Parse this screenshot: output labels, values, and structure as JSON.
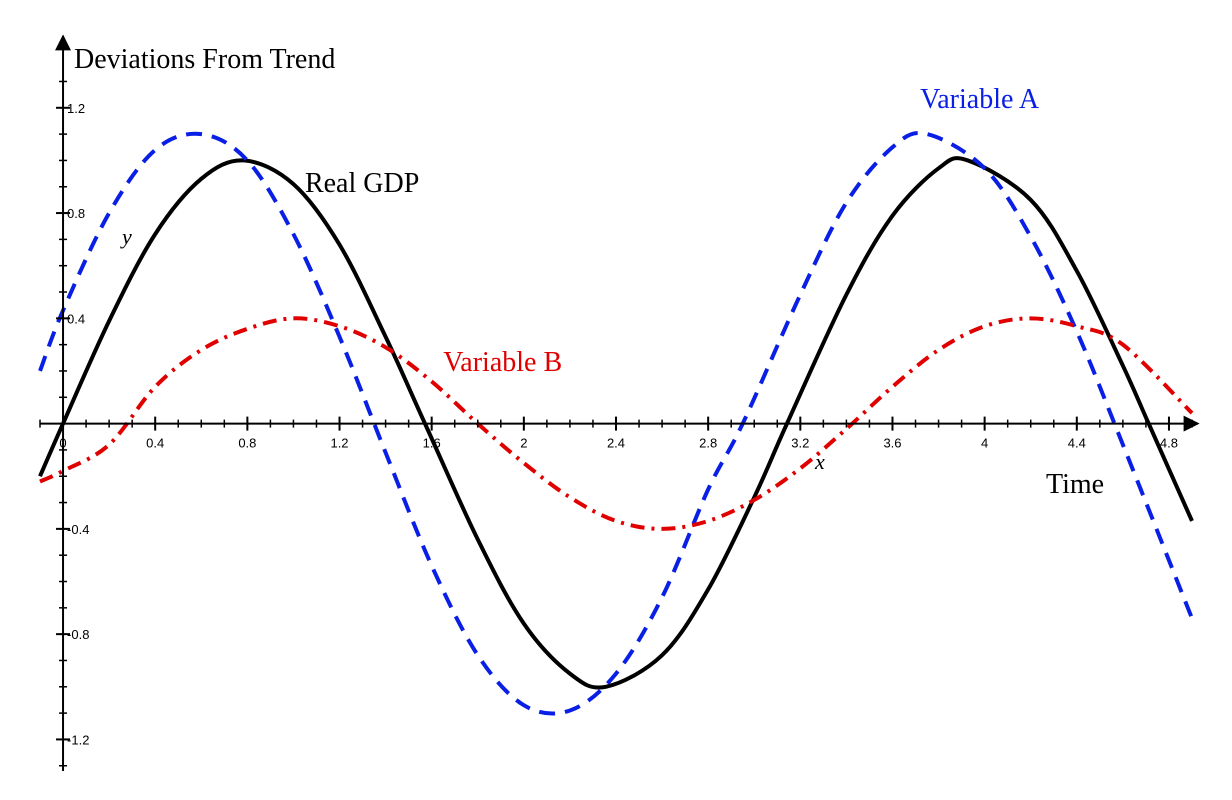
{
  "chart_data": {
    "type": "line",
    "ylabel": "Deviations From Trend",
    "xlabel": "Time",
    "x_axis_var": "x",
    "y_axis_var": "y",
    "xlim": [
      -0.1,
      4.9
    ],
    "ylim": [
      -1.32,
      1.45
    ],
    "x_ticks": [
      0,
      0.4,
      0.8,
      1.2,
      1.6,
      2,
      2.4,
      2.8,
      3.2,
      3.6,
      4,
      4.4,
      4.8
    ],
    "x_tick_labels": [
      "0",
      "0.4",
      "0.8",
      "1.2",
      "1.6",
      "2",
      "2.4",
      "2.8",
      "3.2",
      "3.6",
      "4",
      "4.4",
      "4.8"
    ],
    "y_ticks": [
      1.2,
      0.8,
      0.4,
      -0.4,
      -0.8,
      -1.2
    ],
    "y_tick_labels": [
      "1.2",
      "0.8",
      "0.4",
      "-0.4",
      "-0.8",
      "-1.2"
    ],
    "grid": false,
    "series": [
      {
        "name": "Real GDP",
        "style": "solid",
        "color": "#000000",
        "x": [
          -0.1,
          0,
          0.2,
          0.4,
          0.6,
          0.785,
          1.0,
          1.2,
          1.4,
          1.571,
          1.8,
          2.0,
          2.2,
          2.356,
          2.6,
          2.8,
          3.0,
          3.142,
          3.4,
          3.6,
          3.8,
          3.927,
          4.2,
          4.4,
          4.6,
          4.712,
          4.9
        ],
        "y": [
          -0.2,
          0,
          0.39,
          0.72,
          0.93,
          1.0,
          0.91,
          0.68,
          0.33,
          0,
          -0.44,
          -0.76,
          -0.95,
          -1.0,
          -0.88,
          -0.63,
          -0.28,
          0,
          0.49,
          0.79,
          0.97,
          1.0,
          0.85,
          0.58,
          0.22,
          0,
          -0.37
        ]
      },
      {
        "name": "Variable A",
        "style": "dashed",
        "color": "#0a1fe6",
        "x": [
          -0.1,
          0,
          0.2,
          0.4,
          0.6,
          0.8,
          1.0,
          1.2,
          1.4,
          1.6,
          1.8,
          2.0,
          2.2,
          2.4,
          2.6,
          2.8,
          2.95,
          3.2,
          3.4,
          3.6,
          3.75,
          4.0,
          4.2,
          4.4,
          4.6,
          4.9
        ],
        "y": [
          0.2,
          0.43,
          0.8,
          1.04,
          1.1,
          1.0,
          0.72,
          0.33,
          -0.11,
          -0.54,
          -0.88,
          -1.07,
          -1.09,
          -0.95,
          -0.66,
          -0.25,
          0,
          0.49,
          0.84,
          1.05,
          1.1,
          0.97,
          0.71,
          0.35,
          -0.08,
          -0.74
        ]
      },
      {
        "name": "Variable B",
        "style": "dashdot",
        "color": "#e00000",
        "x": [
          -0.1,
          0,
          0.2,
          0.4,
          0.6,
          0.8,
          1.0,
          1.2,
          1.4,
          1.6,
          1.8,
          2.0,
          2.2,
          2.4,
          2.6,
          2.8,
          3.0,
          3.2,
          3.4,
          3.6,
          3.8,
          4.0,
          4.2,
          4.4,
          4.6,
          4.9
        ],
        "y": [
          -0.22,
          -0.18,
          -0.08,
          0.14,
          0.28,
          0.36,
          0.4,
          0.37,
          0.29,
          0.16,
          0.0,
          -0.15,
          -0.28,
          -0.37,
          -0.4,
          -0.37,
          -0.29,
          -0.17,
          -0.02,
          0.14,
          0.28,
          0.37,
          0.4,
          0.37,
          0.3,
          0.04
        ]
      }
    ],
    "series_label_anchor": [
      {
        "name": "Real GDP",
        "x": 1.05,
        "y": 0.88
      },
      {
        "name": "Variable A",
        "x": 3.72,
        "y": 1.2
      },
      {
        "name": "Variable B",
        "x": 1.65,
        "y": 0.2
      }
    ]
  }
}
